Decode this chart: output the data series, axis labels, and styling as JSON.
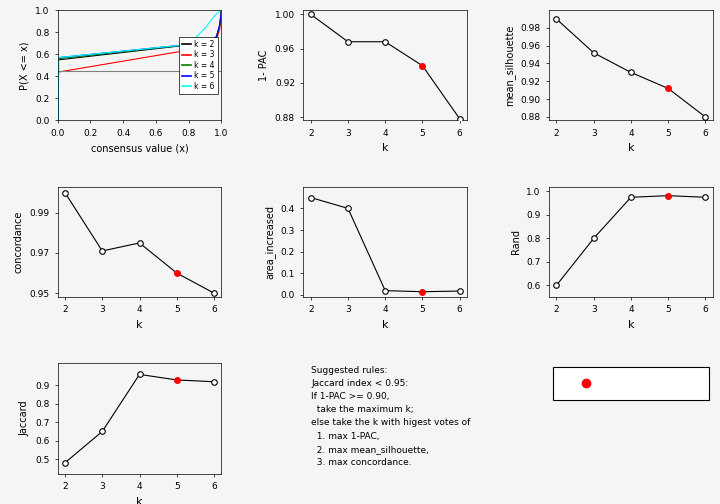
{
  "k_values": [
    2,
    3,
    4,
    5,
    6
  ],
  "best_k": 5,
  "best_idx": 3,
  "pac_1minus": [
    1.0,
    0.968,
    0.968,
    0.94,
    0.878
  ],
  "pac_ylim": [
    0.876,
    1.005
  ],
  "pac_yticks": [
    0.88,
    0.92,
    0.96,
    1.0
  ],
  "mean_silhouette": [
    0.99,
    0.952,
    0.93,
    0.912,
    0.88
  ],
  "sil_ylim": [
    0.876,
    1.0
  ],
  "sil_yticks": [
    0.88,
    0.9,
    0.92,
    0.94,
    0.96,
    0.98
  ],
  "concordance": [
    1.0,
    0.971,
    0.975,
    0.96,
    0.95
  ],
  "conc_ylim": [
    0.948,
    1.003
  ],
  "conc_yticks": [
    0.95,
    0.97,
    0.99
  ],
  "area_increased": [
    0.45,
    0.4,
    0.02,
    0.015,
    0.018
  ],
  "area_ylim": [
    -0.01,
    0.5
  ],
  "area_yticks": [
    0.0,
    0.1,
    0.2,
    0.3,
    0.4
  ],
  "rand": [
    0.6,
    0.8,
    0.975,
    0.982,
    0.975
  ],
  "rand_ylim": [
    0.55,
    1.02
  ],
  "rand_yticks": [
    0.6,
    0.7,
    0.8,
    0.9,
    1.0
  ],
  "jaccard": [
    0.48,
    0.65,
    0.96,
    0.93,
    0.92
  ],
  "jacc_ylim": [
    0.42,
    1.02
  ],
  "jacc_yticks": [
    0.5,
    0.6,
    0.7,
    0.8,
    0.9
  ],
  "ecdf_colors": [
    "black",
    "red",
    "green",
    "blue",
    "cyan"
  ],
  "ecdf_labels": [
    "k = 2",
    "k = 3",
    "k = 4",
    "k = 5",
    "k = 6"
  ],
  "background_color": "#f5f5f5",
  "line_color": "black",
  "open_circle_color": "white",
  "best_k_color": "red",
  "xlabel": "k",
  "ecdf_xlabel": "consensus value (x)",
  "ecdf_ylabel": "P(X <= x)"
}
